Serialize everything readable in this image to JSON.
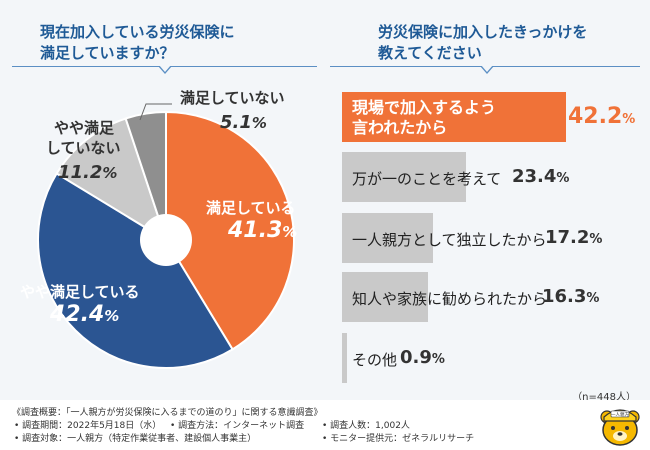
{
  "left_title": {
    "line1": "現在加入している労災保険に",
    "line2": "満足していますか？"
  },
  "right_title": {
    "line1": "労災保険に加入したきっかけを",
    "line2": "教えてください"
  },
  "chart_data": [
    {
      "type": "pie",
      "title": "現在加入している労災保険に満足していますか？",
      "slices": [
        {
          "label": "満足している",
          "value": 41.3,
          "pct": "41.3",
          "color": "#f07238"
        },
        {
          "label": "やや満足している",
          "value": 42.4,
          "pct": "42.4",
          "color": "#2b5592"
        },
        {
          "label": "やや満足していない",
          "label_line1": "やや満足",
          "label_line2": "していない",
          "value": 11.2,
          "pct": "11.2",
          "color": "#c9c9c9"
        },
        {
          "label": "満足していない",
          "value": 5.1,
          "pct": "5.1",
          "color": "#8f8f8f"
        }
      ],
      "unit": "%"
    },
    {
      "type": "bar",
      "title": "労災保険に加入したきっかけを教えてください",
      "categories": [
        "現場で加入するよう言われたから",
        "万が一のことを考えて",
        "一人親方として独立したから",
        "知人や家族に勧められたから",
        "その他"
      ],
      "category_lines": [
        [
          "現場で加入するよう",
          "言われたから"
        ],
        [
          "万が一のことを考えて"
        ],
        [
          "一人親方として独立したから"
        ],
        [
          "知人や家族に勧められたから"
        ],
        [
          "その他"
        ]
      ],
      "values": [
        42.2,
        23.4,
        17.2,
        16.3,
        0.9
      ],
      "pct_text": [
        "42.2",
        "23.4",
        "17.2",
        "16.3",
        "0.9"
      ],
      "unit": "%",
      "colors": {
        "highlight": "#f07238",
        "normal": "#c9c9c9"
      }
    }
  ],
  "n_note": "（n=448人）",
  "footer": {
    "summary": "《調査概要：「一人親方が労災保険に入るまでの道のり」に関する意識調査》",
    "period": "• 調査期間：2022年5月18日（水）",
    "method": "• 調査方法：インターネット調査",
    "count": "• 調査人数：1,002人",
    "target": "• 調査対象：一人親方（特定作業従事者、建設個人事業主）",
    "provider": "• モニター提供元：ゼネラルリサーチ"
  },
  "mascot_badge": "一人親方"
}
